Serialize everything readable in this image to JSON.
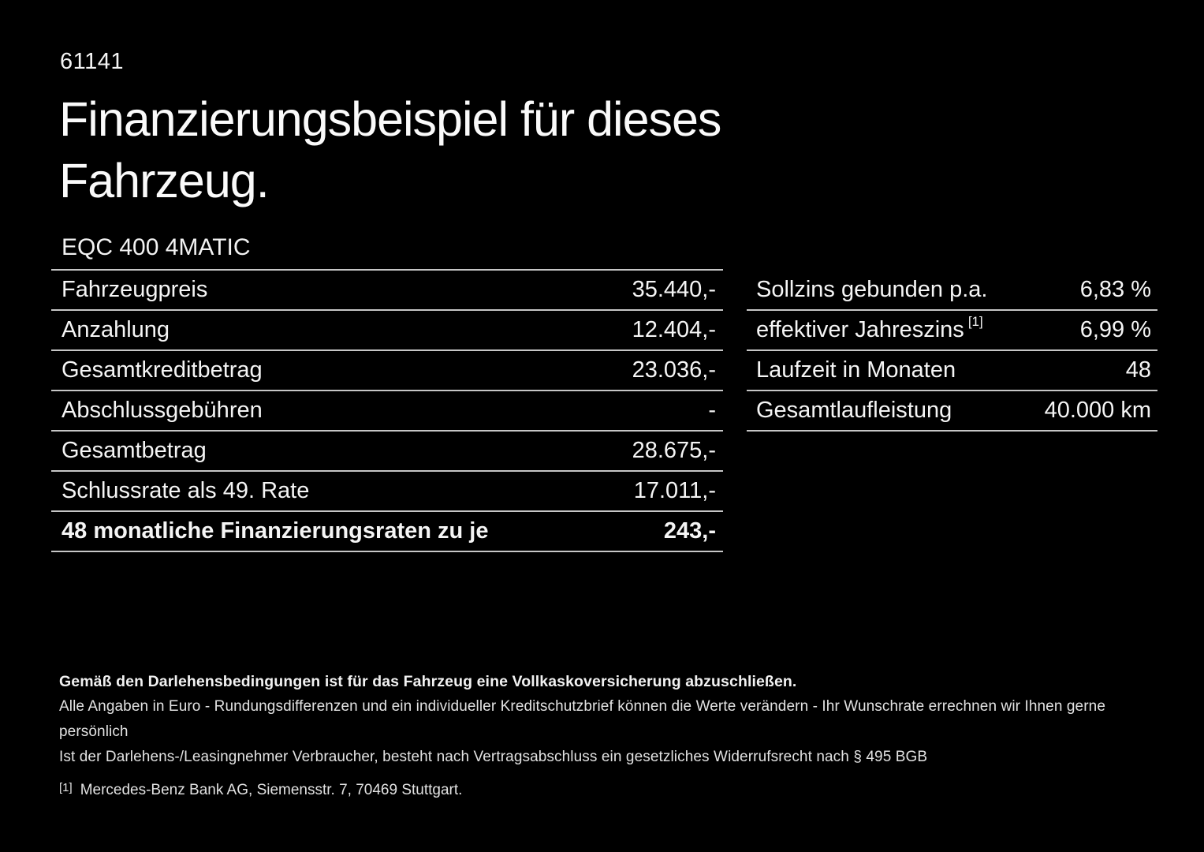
{
  "page": {
    "doc_number": "61141",
    "title_line1": "Finanzierungsbeispiel für dieses",
    "title_line2": "Fahrzeug.",
    "model": "EQC 400 4MATIC"
  },
  "finance_table": {
    "rows": [
      {
        "label": "Fahrzeugpreis",
        "value": "35.440,-"
      },
      {
        "label": "Anzahlung",
        "value": "12.404,-"
      },
      {
        "label": "Gesamtkreditbetrag",
        "value": "23.036,-"
      },
      {
        "label": "Abschlussgebühren",
        "value": "-"
      },
      {
        "label": "Gesamtbetrag",
        "value": "28.675,-"
      },
      {
        "label": "Schlussrate als 49. Rate",
        "value": "17.011,-"
      },
      {
        "label": "48 monatliche Finanzierungsraten zu je",
        "value": "243,-"
      }
    ]
  },
  "conditions_table": {
    "rows": [
      {
        "label": "Sollzins gebunden p.a.",
        "value": "6,83 %"
      },
      {
        "label": "effektiver Jahreszins",
        "footnote_marker": "[1]",
        "value": "6,99 %"
      },
      {
        "label": "Laufzeit in Monaten",
        "value": "48"
      },
      {
        "label": "Gesamtlaufleistung",
        "value": "40.000 km"
      }
    ]
  },
  "footer": {
    "bold_note": "Gemäß den Darlehensbedingungen ist für das Fahrzeug eine Vollkaskoversicherung abzuschließen.",
    "note1": "Alle Angaben in Euro - Rundungsdifferenzen und ein individueller Kreditschutzbrief können die Werte verändern - Ihr Wunschrate errechnen wir Ihnen gerne persönlich",
    "note2": "Ist der Darlehens-/Leasingnehmer Verbraucher, besteht nach Vertragsabschluss ein gesetzliches Widerrufsrecht nach § 495 BGB",
    "footnote_marker": "[1]",
    "footnote": "Mercedes-Benz Bank AG, Siemensstr. 7, 70469 Stuttgart."
  },
  "colors": {
    "background": "#000000",
    "text": "#f5f5f5",
    "divider": "#c6c6c6"
  }
}
